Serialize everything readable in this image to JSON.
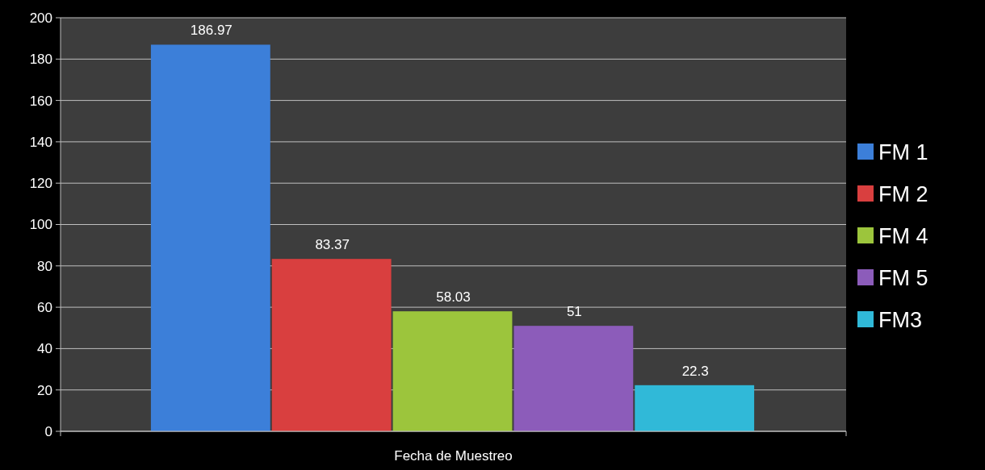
{
  "chart_data": {
    "type": "bar",
    "categories": [
      "Fecha de Muestreo"
    ],
    "series": [
      {
        "name": "FM 1",
        "color": "#3c7fd9",
        "values": [
          186.97
        ]
      },
      {
        "name": "FM 2",
        "color": "#d93f3f",
        "values": [
          83.37
        ]
      },
      {
        "name": "FM 4",
        "color": "#9cc53c",
        "values": [
          58.03
        ]
      },
      {
        "name": "FM 5",
        "color": "#8c5cba",
        "values": [
          51
        ]
      },
      {
        "name": "FM3",
        "color": "#30b9d8",
        "values": [
          22.3
        ]
      }
    ],
    "ylim": [
      0,
      200
    ],
    "yticks": [
      0,
      20,
      40,
      60,
      80,
      100,
      120,
      140,
      160,
      180,
      200
    ],
    "grid": "y",
    "legend": "right",
    "data_labels": true
  }
}
